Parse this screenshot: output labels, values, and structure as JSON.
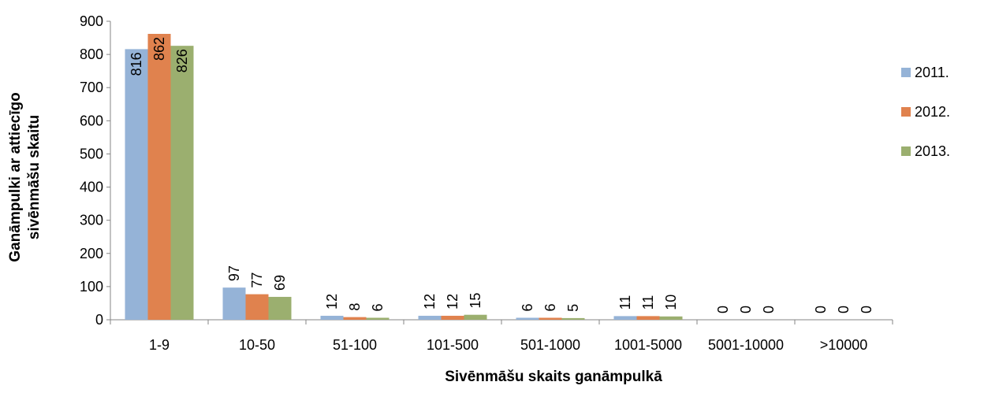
{
  "chart_data": {
    "type": "bar",
    "categories": [
      "1-9",
      "10-50",
      "51-100",
      "101-500",
      "501-1000",
      "1001-5000",
      "5001-10000",
      ">10000"
    ],
    "series": [
      {
        "name": "2011.",
        "color": "#95B3D7",
        "values": [
          816,
          97,
          12,
          12,
          6,
          11,
          0,
          0
        ]
      },
      {
        "name": "2012.",
        "color": "#E0824E",
        "values": [
          862,
          77,
          8,
          12,
          6,
          11,
          0,
          0
        ]
      },
      {
        "name": "2013.",
        "color": "#9BAF6F",
        "values": [
          826,
          69,
          6,
          15,
          5,
          10,
          0,
          0
        ]
      }
    ],
    "xlabel": "Sivēnmāšu skaits ganāmpulkā",
    "ylabel_lines": [
      "Ganāmpulki ar attiecīgo",
      "sivēnmāšu skaitu"
    ],
    "ylim": [
      0,
      900
    ],
    "yticks": [
      0,
      100,
      200,
      300,
      400,
      500,
      600,
      700,
      800,
      900
    ],
    "grid": false,
    "legend_position": "right",
    "data_labels": "rotated-vertical"
  }
}
